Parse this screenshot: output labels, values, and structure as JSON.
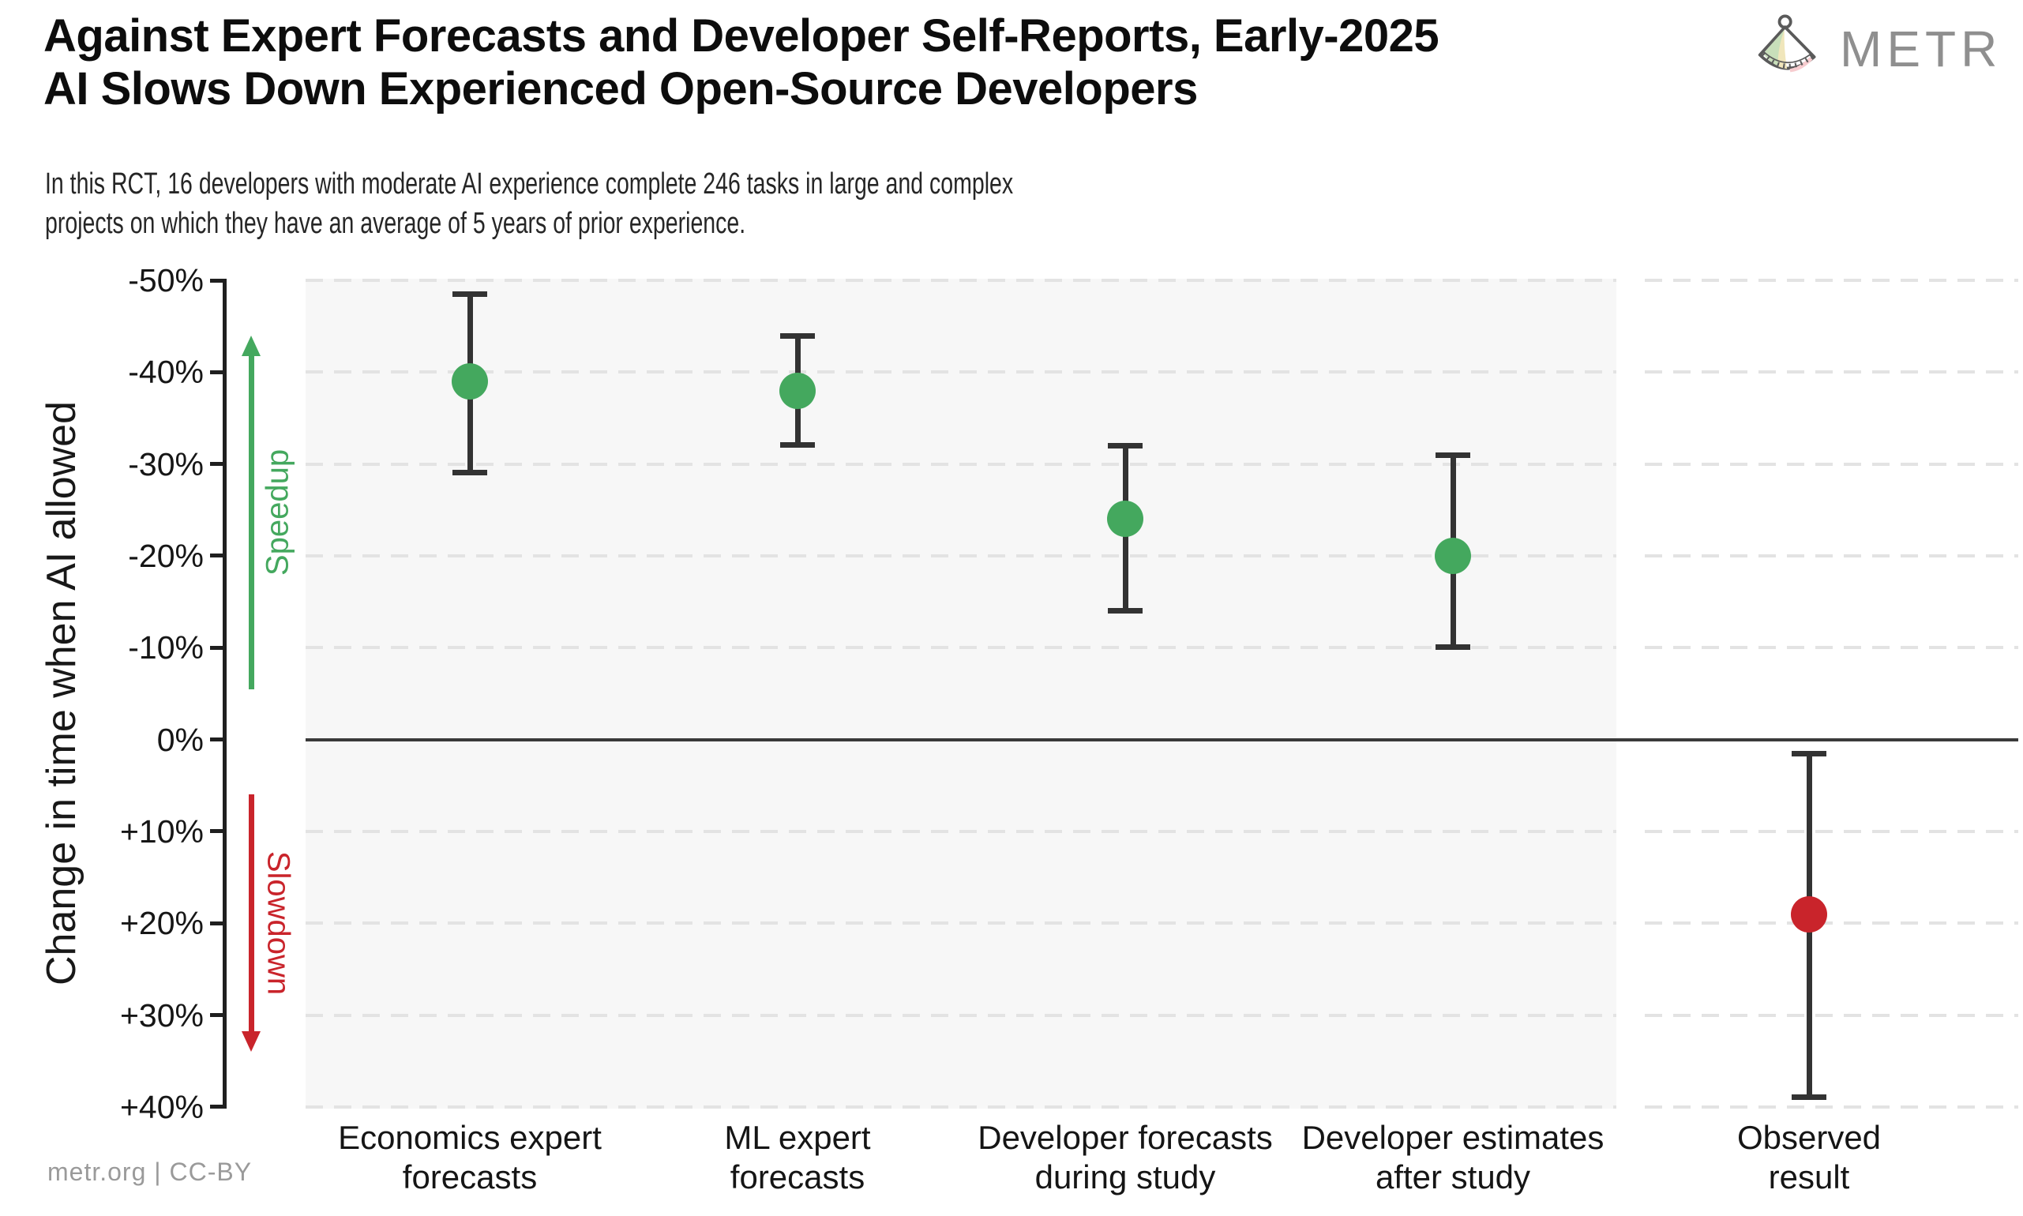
{
  "header": {
    "title_line1": "Against Expert Forecasts and Developer Self-Reports, Early-2025",
    "title_line2": "AI Slows Down Experienced Open-Source Developers",
    "subtitle_line1": "In this RCT, 16 developers with moderate AI experience complete 246 tasks in large and complex",
    "subtitle_line2": "projects on which they have an average of 5 years of prior experience.",
    "brand_name": "METR"
  },
  "footer": {
    "credit": "metr.org  |  CC-BY"
  },
  "colors": {
    "green": "#44a85e",
    "red": "#c9242b",
    "axis": "#1f1f1f",
    "errorbar": "#333333",
    "zero_line": "#3a3a3a",
    "gridline": "#e3e3e3",
    "panel_bg": "#f7f7f7",
    "brand_gray": "#8f8f8f",
    "footer_gray": "#9a9a9a"
  },
  "chart_data": {
    "type": "scatter",
    "subtype": "point-estimates-with-95ci-errorbars",
    "title": "Against Expert Forecasts and Developer Self-Reports, Early-2025 AI Slows Down Experienced Open-Source Developers",
    "xlabel": "",
    "ylabel": "Change in time when AI allowed",
    "ylim": [
      -50,
      40
    ],
    "y_axis_orientation": "negative (speedup) at top, positive (slowdown) at bottom",
    "grid": "horizontal dashed gridlines at every 10%",
    "legend": "none",
    "zero_line_value": 0,
    "yticks": [
      {
        "value": -50,
        "label": "-50%"
      },
      {
        "value": -40,
        "label": "-40%"
      },
      {
        "value": -30,
        "label": "-30%"
      },
      {
        "value": -20,
        "label": "-20%"
      },
      {
        "value": -10,
        "label": "-10%"
      },
      {
        "value": 0,
        "label": "0%"
      },
      {
        "value": 10,
        "label": "+10%"
      },
      {
        "value": 20,
        "label": "+20%"
      },
      {
        "value": 30,
        "label": "+30%"
      },
      {
        "value": 40,
        "label": "+40%"
      }
    ],
    "speedup_annotation": {
      "label": "Speedup",
      "arrow_from": -5.5,
      "arrow_to": -44,
      "direction": "up",
      "color": "#44a85e"
    },
    "slowdown_annotation": {
      "label": "Slowdown",
      "arrow_from": 6,
      "arrow_to": 34,
      "direction": "down",
      "color": "#c9242b"
    },
    "series": [
      {
        "category_line1": "Economics expert",
        "category_line2": "forecasts",
        "mean": -39,
        "ci_low": -48.5,
        "ci_high": -29,
        "color": "#44a85e",
        "panel": "main"
      },
      {
        "category_line1": "ML expert",
        "category_line2": "forecasts",
        "mean": -38,
        "ci_low": -44,
        "ci_high": -32,
        "color": "#44a85e",
        "panel": "main"
      },
      {
        "category_line1": "Developer forecasts",
        "category_line2": "during study",
        "mean": -24,
        "ci_low": -32,
        "ci_high": -14,
        "color": "#44a85e",
        "panel": "main"
      },
      {
        "category_line1": "Developer estimates",
        "category_line2": "after study",
        "mean": -20,
        "ci_low": -31,
        "ci_high": -10,
        "color": "#44a85e",
        "panel": "main"
      },
      {
        "category_line1": "Observed",
        "category_line2": "result",
        "mean": 19,
        "ci_low": 1.5,
        "ci_high": 39,
        "color": "#c9242b",
        "panel": "right"
      }
    ]
  }
}
